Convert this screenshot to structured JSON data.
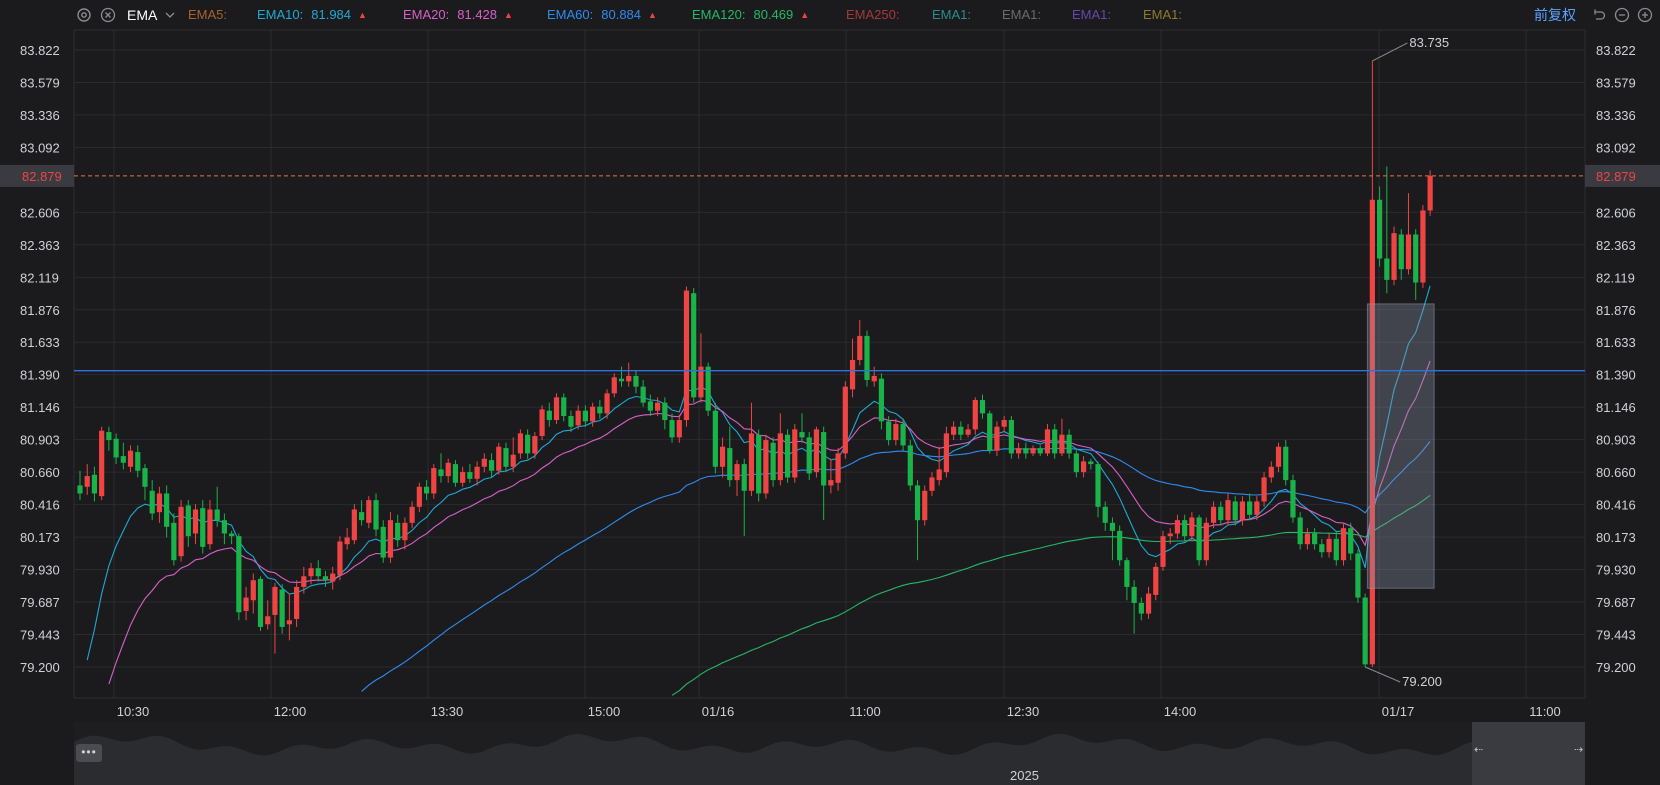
{
  "toolbar": {
    "indicator": "EMA",
    "ema_items": [
      {
        "label": "EMA5:",
        "value": "",
        "color": "#a8632b",
        "arrow": ""
      },
      {
        "label": "EMA10:",
        "value": "81.984",
        "color": "#1fa9d6",
        "arrow": "▲"
      },
      {
        "label": "EMA20:",
        "value": "81.428",
        "color": "#d860c8",
        "arrow": "▲"
      },
      {
        "label": "EMA60:",
        "value": "80.884",
        "color": "#2d8cf0",
        "arrow": "▲"
      },
      {
        "label": "EMA120:",
        "value": "80.469",
        "color": "#25b868",
        "arrow": "▲"
      },
      {
        "label": "EMA250:",
        "value": "",
        "color": "#a33a3a",
        "arrow": ""
      },
      {
        "label": "EMA1:",
        "value": "",
        "color": "#2a8c8c",
        "arrow": ""
      },
      {
        "label": "EMA1:",
        "value": "",
        "color": "#6b6b6b",
        "arrow": ""
      },
      {
        "label": "EMA1:",
        "value": "",
        "color": "#6a45b0",
        "arrow": ""
      },
      {
        "label": "EMA1:",
        "value": "",
        "color": "#8c7a2a",
        "arrow": ""
      }
    ],
    "adjust_label": "前复权",
    "icons": [
      "settings-icon",
      "close-icon",
      "chevron-down-icon",
      "undo-icon",
      "zoom-out-icon",
      "zoom-in-icon"
    ]
  },
  "colors": {
    "up": "#ef4444",
    "down": "#19b34a",
    "blue_line": "#2d72e0",
    "current_price": "#e8743b",
    "ema10": "#1fa9d6",
    "ema20": "#d860c8",
    "ema60": "#2d8cf0",
    "ema120": "#25b868",
    "grid": "#2a2b2f"
  },
  "chart_data": {
    "type": "candlestick",
    "y_ticks": [
      "83.822",
      "83.579",
      "83.336",
      "83.092",
      "82.606",
      "82.363",
      "82.119",
      "81.876",
      "81.633",
      "81.390",
      "81.146",
      "80.903",
      "80.660",
      "80.416",
      "80.173",
      "79.930",
      "79.687",
      "79.443",
      "79.200"
    ],
    "ylim": [
      79.0,
      84.0
    ],
    "x_ticks": [
      "10:30",
      "12:00",
      "13:30",
      "15:00",
      "01/16",
      "11:00",
      "12:30",
      "14:00",
      "01/17",
      "11:00"
    ],
    "current_price": "82.879",
    "horizontal_line": 81.42,
    "annotations": {
      "high": "83.735",
      "low": "79.200"
    },
    "selection_box": {
      "y_top": 81.92,
      "y_bottom": 79.79
    },
    "grid": true,
    "navigator_year": "2025",
    "navigator_dots": "•••",
    "navigator_left_arrow": "⇠",
    "navigator_right_arrow": "⇢",
    "candles": [
      [
        80.56,
        80.5,
        80.67,
        80.45
      ],
      [
        80.55,
        80.63,
        80.72,
        80.49
      ],
      [
        80.64,
        80.5,
        80.7,
        80.44
      ],
      [
        80.48,
        80.97,
        81.0,
        80.45
      ],
      [
        80.96,
        80.9,
        81.0,
        80.82
      ],
      [
        80.91,
        80.77,
        80.95,
        80.72
      ],
      [
        80.78,
        80.73,
        80.88,
        80.68
      ],
      [
        80.7,
        80.82,
        80.86,
        80.66
      ],
      [
        80.81,
        80.67,
        80.86,
        80.62
      ],
      [
        80.69,
        80.55,
        80.72,
        80.45
      ],
      [
        80.52,
        80.35,
        80.6,
        80.3
      ],
      [
        80.36,
        80.5,
        80.55,
        80.28
      ],
      [
        80.5,
        80.25,
        80.56,
        80.17
      ],
      [
        80.28,
        80.0,
        80.35,
        79.96
      ],
      [
        80.03,
        80.4,
        80.45,
        79.99
      ],
      [
        80.41,
        80.18,
        80.45,
        80.1
      ],
      [
        80.2,
        80.38,
        80.42,
        80.12
      ],
      [
        80.39,
        80.1,
        80.45,
        80.05
      ],
      [
        80.12,
        80.38,
        80.45,
        80.08
      ],
      [
        80.38,
        80.3,
        80.55,
        80.25
      ],
      [
        80.3,
        80.2,
        80.35,
        80.12
      ],
      [
        80.2,
        80.18,
        80.22,
        80.12
      ],
      [
        80.18,
        79.61,
        80.2,
        79.55
      ],
      [
        79.62,
        79.72,
        79.8,
        79.55
      ],
      [
        79.7,
        79.85,
        79.9,
        79.6
      ],
      [
        79.86,
        79.5,
        79.88,
        79.47
      ],
      [
        79.52,
        79.58,
        79.7,
        79.48
      ],
      [
        79.59,
        79.8,
        79.83,
        79.3
      ],
      [
        79.78,
        79.5,
        79.82,
        79.45
      ],
      [
        79.52,
        79.55,
        79.75,
        79.4
      ],
      [
        79.56,
        79.8,
        79.85,
        79.5
      ],
      [
        79.8,
        79.88,
        79.95,
        79.75
      ],
      [
        79.88,
        79.94,
        79.98,
        79.82
      ],
      [
        79.94,
        79.88,
        80.0,
        79.84
      ],
      [
        79.88,
        79.85,
        79.92,
        79.8
      ],
      [
        79.84,
        79.9,
        79.95,
        79.78
      ],
      [
        79.89,
        80.14,
        80.18,
        79.85
      ],
      [
        80.12,
        80.17,
        80.24,
        80.08
      ],
      [
        80.15,
        80.38,
        80.42,
        80.12
      ],
      [
        80.36,
        80.3,
        80.45,
        80.26
      ],
      [
        80.28,
        80.45,
        80.48,
        80.24
      ],
      [
        80.45,
        80.23,
        80.5,
        80.18
      ],
      [
        80.25,
        80.02,
        80.3,
        79.98
      ],
      [
        80.02,
        80.3,
        80.36,
        79.98
      ],
      [
        80.28,
        80.15,
        80.34,
        80.1
      ],
      [
        80.15,
        80.28,
        80.32,
        80.08
      ],
      [
        80.28,
        80.4,
        80.44,
        80.24
      ],
      [
        80.4,
        80.55,
        80.58,
        80.36
      ],
      [
        80.55,
        80.5,
        80.6,
        80.45
      ],
      [
        80.5,
        80.69,
        80.72,
        80.46
      ],
      [
        80.68,
        80.63,
        80.8,
        80.58
      ],
      [
        80.63,
        80.73,
        80.76,
        80.58
      ],
      [
        80.72,
        80.58,
        80.75,
        80.55
      ],
      [
        80.58,
        80.66,
        80.7,
        80.55
      ],
      [
        80.66,
        80.61,
        80.72,
        80.58
      ],
      [
        80.61,
        80.7,
        80.74,
        80.56
      ],
      [
        80.7,
        80.76,
        80.8,
        80.66
      ],
      [
        80.75,
        80.67,
        80.8,
        80.62
      ],
      [
        80.67,
        80.85,
        80.88,
        80.64
      ],
      [
        80.84,
        80.7,
        80.88,
        80.66
      ],
      [
        80.7,
        80.79,
        80.92,
        80.66
      ],
      [
        80.8,
        80.95,
        80.98,
        80.76
      ],
      [
        80.94,
        80.8,
        80.98,
        80.76
      ],
      [
        80.8,
        80.93,
        80.96,
        80.76
      ],
      [
        80.93,
        81.13,
        81.16,
        80.9
      ],
      [
        81.12,
        81.05,
        81.18,
        81.0
      ],
      [
        81.05,
        81.22,
        81.25,
        81.02
      ],
      [
        81.22,
        81.08,
        81.25,
        81.04
      ],
      [
        81.08,
        81.0,
        81.12,
        80.96
      ],
      [
        81.01,
        81.12,
        81.16,
        80.98
      ],
      [
        81.12,
        81.04,
        81.16,
        81.0
      ],
      [
        81.04,
        81.15,
        81.18,
        81.0
      ],
      [
        81.15,
        81.1,
        81.2,
        81.06
      ],
      [
        81.1,
        81.25,
        81.28,
        81.06
      ],
      [
        81.25,
        81.37,
        81.4,
        81.22
      ],
      [
        81.36,
        81.34,
        81.45,
        81.3
      ],
      [
        81.34,
        81.38,
        81.48,
        81.3
      ],
      [
        81.38,
        81.3,
        81.42,
        81.25
      ],
      [
        81.3,
        81.18,
        81.35,
        81.15
      ],
      [
        81.19,
        81.12,
        81.24,
        81.08
      ],
      [
        81.12,
        81.18,
        81.22,
        81.08
      ],
      [
        81.18,
        81.05,
        81.22,
        80.98
      ],
      [
        81.05,
        80.92,
        81.1,
        80.88
      ],
      [
        80.92,
        81.05,
        81.09,
        80.88
      ],
      [
        81.05,
        82.02,
        82.05,
        81.0
      ],
      [
        82.0,
        81.22,
        82.04,
        81.18
      ],
      [
        81.22,
        81.45,
        81.7,
        81.18
      ],
      [
        81.45,
        81.12,
        81.48,
        81.08
      ],
      [
        81.12,
        80.7,
        81.18,
        80.65
      ],
      [
        80.7,
        80.85,
        80.92,
        80.62
      ],
      [
        80.84,
        80.6,
        81.0,
        80.55
      ],
      [
        80.6,
        80.72,
        80.75,
        80.48
      ],
      [
        80.72,
        80.52,
        80.76,
        80.18
      ],
      [
        80.52,
        80.95,
        81.18,
        80.48
      ],
      [
        80.94,
        80.5,
        80.98,
        80.44
      ],
      [
        80.5,
        80.9,
        80.94,
        80.46
      ],
      [
        80.88,
        80.6,
        80.92,
        80.55
      ],
      [
        80.6,
        80.95,
        81.1,
        80.56
      ],
      [
        80.94,
        80.62,
        80.98,
        80.58
      ],
      [
        80.62,
        80.98,
        81.02,
        80.58
      ],
      [
        80.96,
        80.92,
        81.1,
        80.88
      ],
      [
        80.92,
        80.65,
        80.96,
        80.6
      ],
      [
        80.66,
        80.98,
        81.0,
        80.62
      ],
      [
        80.96,
        80.56,
        81.0,
        80.3
      ],
      [
        80.56,
        80.6,
        80.76,
        80.5
      ],
      [
        80.58,
        80.8,
        80.84,
        80.52
      ],
      [
        80.8,
        81.3,
        81.34,
        80.76
      ],
      [
        81.28,
        81.5,
        81.66,
        81.22
      ],
      [
        81.5,
        81.68,
        81.8,
        81.46
      ],
      [
        81.68,
        81.35,
        81.72,
        81.3
      ],
      [
        81.34,
        81.38,
        81.45,
        81.3
      ],
      [
        81.36,
        81.04,
        81.4,
        80.98
      ],
      [
        81.04,
        80.9,
        81.08,
        80.86
      ],
      [
        80.9,
        81.02,
        81.06,
        80.86
      ],
      [
        81.02,
        80.86,
        81.06,
        80.82
      ],
      [
        80.86,
        80.56,
        80.9,
        80.52
      ],
      [
        80.56,
        80.3,
        80.6,
        80.0
      ],
      [
        80.3,
        80.52,
        80.56,
        80.26
      ],
      [
        80.52,
        80.62,
        80.66,
        80.48
      ],
      [
        80.6,
        80.68,
        80.85,
        80.56
      ],
      [
        80.66,
        80.95,
        81.0,
        80.62
      ],
      [
        80.94,
        81.0,
        81.04,
        80.9
      ],
      [
        81.0,
        80.94,
        81.04,
        80.9
      ],
      [
        80.94,
        80.98,
        81.02,
        80.92
      ],
      [
        80.98,
        81.2,
        81.22,
        80.94
      ],
      [
        81.2,
        81.1,
        81.24,
        81.06
      ],
      [
        81.1,
        80.82,
        81.12,
        80.8
      ],
      [
        80.82,
        81.0,
        81.04,
        80.78
      ],
      [
        81.0,
        81.05,
        81.08,
        80.96
      ],
      [
        81.05,
        80.8,
        81.08,
        80.76
      ],
      [
        80.8,
        80.84,
        80.88,
        80.76
      ],
      [
        80.84,
        80.8,
        80.88,
        80.76
      ],
      [
        80.8,
        80.84,
        80.86,
        80.78
      ],
      [
        80.84,
        80.8,
        80.86,
        80.78
      ],
      [
        80.8,
        80.98,
        81.02,
        80.78
      ],
      [
        80.98,
        80.8,
        81.02,
        80.76
      ],
      [
        80.8,
        80.94,
        81.06,
        80.78
      ],
      [
        80.94,
        80.8,
        80.98,
        80.76
      ],
      [
        80.8,
        80.66,
        80.84,
        80.62
      ],
      [
        80.66,
        80.74,
        80.78,
        80.62
      ],
      [
        80.74,
        80.72,
        80.76,
        80.68
      ],
      [
        80.72,
        80.4,
        80.74,
        80.32
      ],
      [
        80.4,
        80.28,
        80.44,
        80.22
      ],
      [
        80.28,
        80.22,
        80.32,
        80.0
      ],
      [
        80.22,
        80.0,
        80.26,
        79.96
      ],
      [
        80.0,
        79.8,
        80.02,
        79.7
      ],
      [
        79.8,
        79.68,
        79.85,
        79.45
      ],
      [
        79.68,
        79.6,
        79.72,
        79.55
      ],
      [
        79.6,
        79.75,
        79.8,
        79.56
      ],
      [
        79.74,
        79.95,
        79.98,
        79.7
      ],
      [
        79.95,
        80.18,
        80.22,
        79.92
      ],
      [
        80.18,
        80.2,
        80.24,
        80.12
      ],
      [
        80.2,
        80.3,
        80.34,
        80.16
      ],
      [
        80.3,
        80.18,
        80.34,
        80.14
      ],
      [
        80.18,
        80.32,
        80.36,
        80.14
      ],
      [
        80.32,
        80.0,
        80.34,
        79.96
      ],
      [
        80.0,
        80.28,
        80.32,
        79.96
      ],
      [
        80.28,
        80.4,
        80.44,
        80.24
      ],
      [
        80.4,
        80.3,
        80.44,
        80.26
      ],
      [
        80.3,
        80.45,
        80.5,
        80.26
      ],
      [
        80.44,
        80.3,
        80.48,
        80.26
      ],
      [
        80.3,
        80.44,
        80.48,
        80.26
      ],
      [
        80.44,
        80.34,
        80.5,
        80.3
      ],
      [
        80.34,
        80.44,
        80.48,
        80.3
      ],
      [
        80.44,
        80.62,
        80.66,
        80.4
      ],
      [
        80.62,
        80.7,
        80.74,
        80.58
      ],
      [
        80.7,
        80.85,
        80.88,
        80.66
      ],
      [
        80.85,
        80.6,
        80.9,
        80.56
      ],
      [
        80.6,
        80.32,
        80.64,
        80.28
      ],
      [
        80.32,
        80.12,
        80.36,
        80.08
      ],
      [
        80.12,
        80.2,
        80.24,
        80.08
      ],
      [
        80.2,
        80.12,
        80.24,
        80.08
      ],
      [
        80.12,
        80.06,
        80.16,
        80.02
      ],
      [
        80.06,
        80.16,
        80.2,
        80.02
      ],
      [
        80.16,
        80.0,
        80.22,
        79.96
      ],
      [
        80.0,
        80.24,
        80.28,
        79.96
      ],
      [
        80.24,
        80.05,
        80.28,
        80.0
      ],
      [
        80.05,
        79.72,
        80.08,
        79.68
      ],
      [
        79.72,
        79.22,
        79.75,
        79.2
      ],
      [
        79.22,
        82.7,
        83.74,
        79.2
      ],
      [
        82.7,
        82.26,
        82.8,
        82.2
      ],
      [
        82.26,
        82.1,
        82.95,
        82.0
      ],
      [
        82.1,
        82.45,
        82.5,
        82.06
      ],
      [
        82.44,
        82.18,
        82.48,
        82.1
      ],
      [
        82.18,
        82.44,
        82.75,
        82.14
      ],
      [
        82.44,
        82.08,
        82.48,
        81.95
      ],
      [
        82.08,
        82.62,
        82.66,
        82.04
      ],
      [
        82.62,
        82.88,
        82.92,
        82.58
      ]
    ]
  }
}
